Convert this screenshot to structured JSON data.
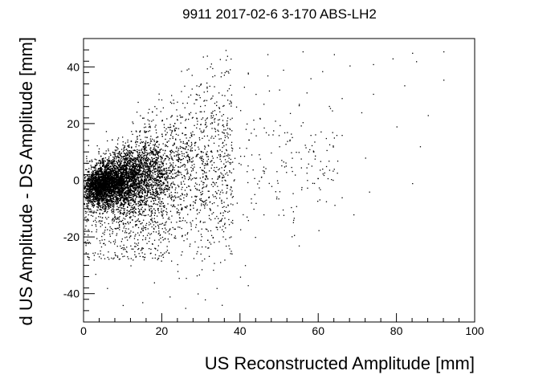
{
  "chart_data": {
    "type": "scatter",
    "title": "9911 2017-02-6 3-170 ABS-LH2",
    "xlabel": "US Reconstructed Amplitude [mm]",
    "ylabel": "d US Amplitude - DS Amplitude [mm]",
    "xlim": [
      0,
      100
    ],
    "ylim": [
      -50,
      50
    ],
    "x_ticks": [
      0,
      20,
      40,
      60,
      80,
      100
    ],
    "y_ticks": [
      -40,
      -20,
      0,
      20,
      40
    ],
    "grid": false,
    "legend": "none",
    "marker_color": "#000000",
    "distribution": {
      "core": {
        "x_range": [
          0,
          30
        ],
        "y_range": [
          -15,
          15
        ],
        "density": "very high"
      },
      "tail": {
        "x_range": [
          30,
          95
        ],
        "y_range": [
          -45,
          46
        ],
        "density": "sparse"
      }
    },
    "series": [
      {
        "points": [
          [
            47,
            44.5
          ],
          [
            56,
            45.5
          ],
          [
            64,
            44.5
          ],
          [
            84,
            45
          ],
          [
            92,
            45.5
          ],
          [
            79,
            43
          ],
          [
            85,
            42
          ],
          [
            74,
            41
          ],
          [
            68,
            40.5
          ],
          [
            37,
            38
          ],
          [
            42,
            38
          ],
          [
            51,
            39
          ],
          [
            61,
            38.5
          ],
          [
            47,
            37
          ],
          [
            58,
            36
          ],
          [
            82,
            33.5
          ],
          [
            92,
            35.5
          ],
          [
            74,
            30.5
          ],
          [
            66,
            29
          ],
          [
            57,
            31
          ],
          [
            50,
            32
          ],
          [
            41,
            33
          ],
          [
            36,
            30
          ],
          [
            39,
            26
          ],
          [
            46,
            27
          ],
          [
            55,
            26.5
          ],
          [
            63,
            25.5
          ],
          [
            71,
            24
          ],
          [
            88,
            23
          ],
          [
            80,
            19
          ],
          [
            66,
            16
          ],
          [
            58,
            16
          ],
          [
            52,
            17
          ],
          [
            45,
            22
          ],
          [
            50,
            12
          ],
          [
            86,
            12
          ],
          [
            72,
            8
          ],
          [
            62,
            5
          ],
          [
            54,
            2
          ],
          [
            48,
            -2
          ],
          [
            44,
            -8
          ],
          [
            84,
            -1
          ],
          [
            73,
            -4
          ],
          [
            66,
            -6
          ],
          [
            69,
            -12
          ],
          [
            46,
            -12
          ],
          [
            38,
            -15
          ],
          [
            55,
            -23
          ],
          [
            36,
            -28
          ],
          [
            40,
            -34
          ],
          [
            42,
            -37
          ],
          [
            34,
            -38
          ],
          [
            31,
            -42
          ],
          [
            26,
            -45
          ],
          [
            22,
            -41
          ],
          [
            15,
            -43
          ],
          [
            10,
            -44
          ],
          [
            6,
            -38
          ],
          [
            3,
            -33
          ],
          [
            18,
            -36
          ],
          [
            12,
            -30
          ],
          [
            24,
            -32
          ],
          [
            29,
            -25
          ],
          [
            33,
            -20
          ]
        ]
      }
    ]
  }
}
